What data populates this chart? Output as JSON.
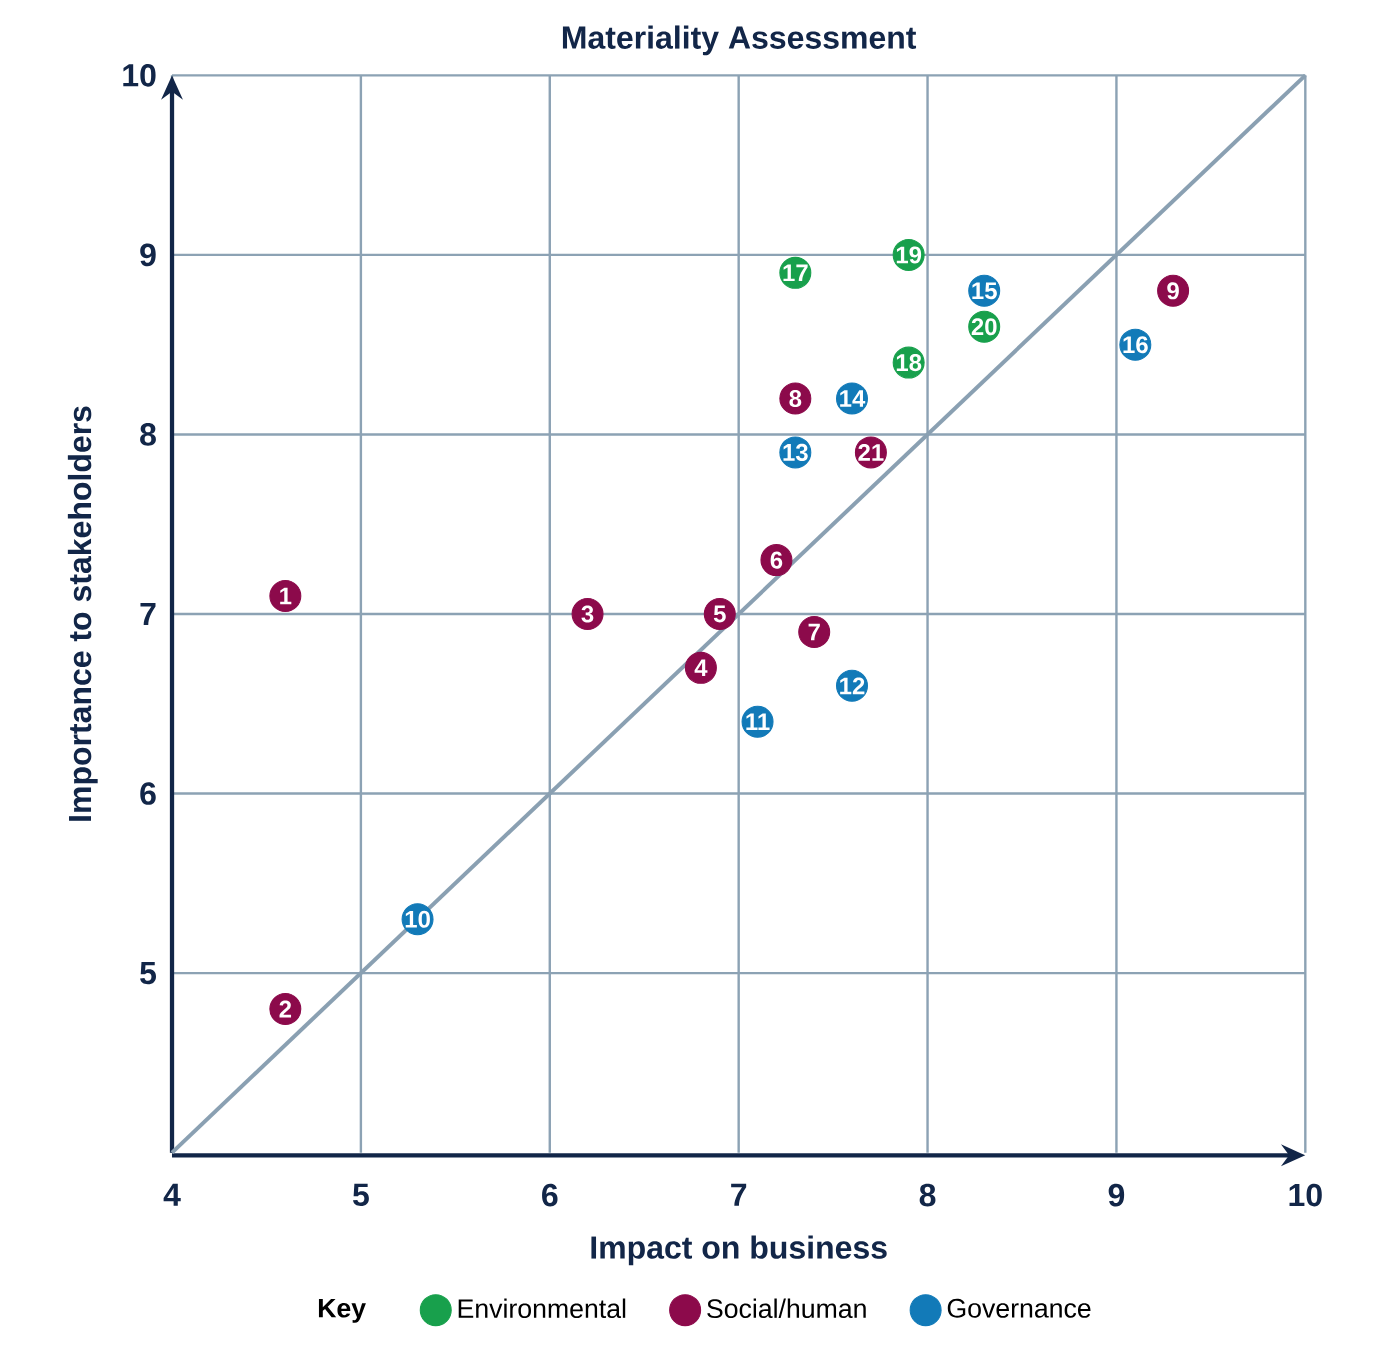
{
  "chart_data": {
    "type": "scatter",
    "title": "Materiality Assessment",
    "xlabel": "Impact on business",
    "ylabel": "Importance to stakeholders",
    "legend_title": "Key",
    "xlim": [
      4,
      10
    ],
    "ylim": [
      4,
      10
    ],
    "xticks": [
      4,
      5,
      6,
      7,
      8,
      9,
      10
    ],
    "yticks": [
      5,
      6,
      7,
      8,
      9,
      10
    ],
    "grid": true,
    "legend": "bottom",
    "marker": "circle",
    "series": [
      {
        "name": "Environmental",
        "color": "#18a04c",
        "x": [
          7.3,
          7.9,
          7.9,
          8.3
        ],
        "values": [
          8.9,
          8.4,
          9.0,
          8.6
        ]
      },
      {
        "name": "Social/human",
        "color": "#8c0a4b",
        "x": [
          4.6,
          4.6,
          6.2,
          6.8,
          6.9,
          7.2,
          7.4,
          7.3,
          9.3,
          7.7
        ],
        "values": [
          7.1,
          4.8,
          7.0,
          6.7,
          7.0,
          7.3,
          6.9,
          8.2,
          8.8,
          7.9
        ]
      },
      {
        "name": "Governance",
        "color": "#127ab8",
        "x": [
          5.3,
          7.1,
          7.6,
          7.3,
          7.6,
          8.3,
          9.1
        ],
        "values": [
          5.3,
          6.4,
          6.6,
          7.9,
          8.2,
          8.8,
          8.5
        ]
      },
      {
        "type": "line",
        "color": "#8aa0b2",
        "x": [
          4,
          10
        ],
        "values": [
          4,
          10
        ],
        "marker": "none"
      }
    ],
    "annotations": [
      {
        "text": "17",
        "x": 7.3,
        "y": 8.9
      },
      {
        "text": "18",
        "x": 7.9,
        "y": 8.4
      },
      {
        "text": "19",
        "x": 7.9,
        "y": 9.0
      },
      {
        "text": "20",
        "x": 8.3,
        "y": 8.6
      },
      {
        "text": "1",
        "x": 4.6,
        "y": 7.1
      },
      {
        "text": "2",
        "x": 4.6,
        "y": 4.8
      },
      {
        "text": "3",
        "x": 6.2,
        "y": 7.0
      },
      {
        "text": "4",
        "x": 6.8,
        "y": 6.7
      },
      {
        "text": "5",
        "x": 6.9,
        "y": 7.0
      },
      {
        "text": "6",
        "x": 7.2,
        "y": 7.3
      },
      {
        "text": "7",
        "x": 7.4,
        "y": 6.9
      },
      {
        "text": "8",
        "x": 7.3,
        "y": 8.2
      },
      {
        "text": "9",
        "x": 9.3,
        "y": 8.8
      },
      {
        "text": "21",
        "x": 7.7,
        "y": 7.9
      },
      {
        "text": "10",
        "x": 5.3,
        "y": 5.3
      },
      {
        "text": "11",
        "x": 7.1,
        "y": 6.4
      },
      {
        "text": "12",
        "x": 7.6,
        "y": 6.6
      },
      {
        "text": "13",
        "x": 7.3,
        "y": 7.9
      },
      {
        "text": "14",
        "x": 7.6,
        "y": 8.2
      },
      {
        "text": "15",
        "x": 8.3,
        "y": 8.8
      },
      {
        "text": "16",
        "x": 9.1,
        "y": 8.5
      }
    ]
  }
}
